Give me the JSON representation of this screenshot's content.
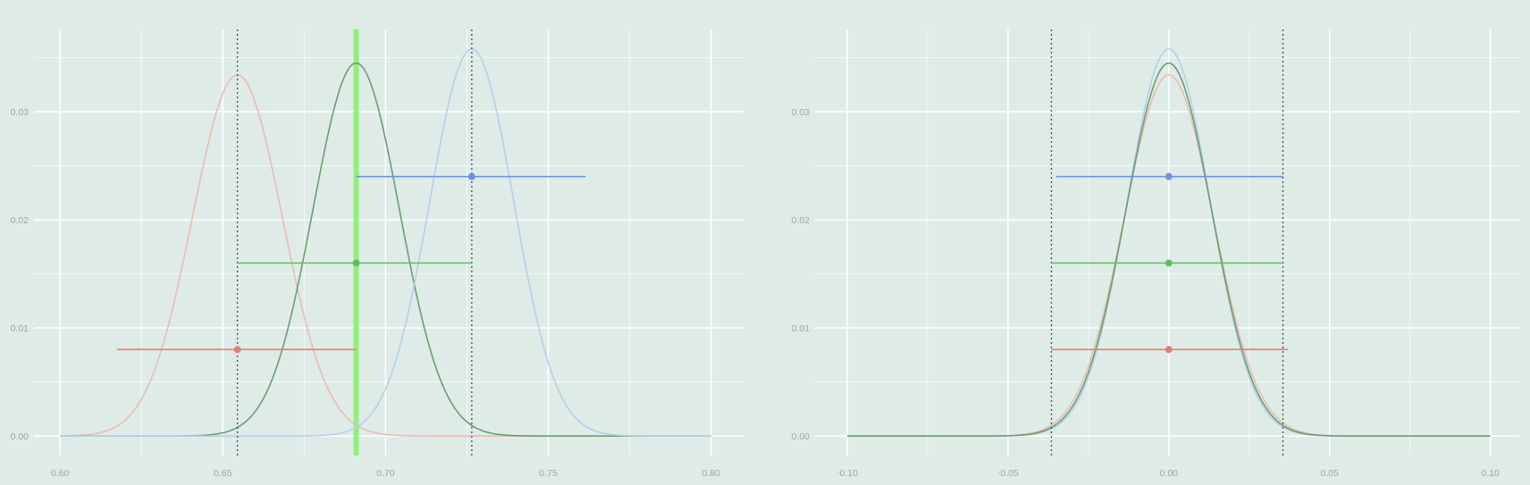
{
  "colors": {
    "background": "#dfebe7",
    "grid": "#ffffff",
    "tick_text": "#9aa8a4",
    "reference_line": "#4b5a55",
    "highlight_band": "#8ff07e",
    "red_curve": "#e9bcb2",
    "green_curve": "#6a9e72",
    "blue_curve": "#b6cfe8",
    "red_bar": "#e07f74",
    "green_bar": "#5cc05f",
    "blue_bar": "#6b93e3"
  },
  "chart_data": [
    {
      "type": "line",
      "title": "",
      "xlabel": "",
      "ylabel": "",
      "xlim": [
        0.592,
        0.81
      ],
      "ylim": [
        -0.0018,
        0.0376
      ],
      "x_ticks": [
        0.6,
        0.65,
        0.7,
        0.75,
        0.8
      ],
      "x_tick_labels": [
        "0.60",
        "0.65",
        "0.70",
        "0.75",
        "0.80"
      ],
      "y_ticks": [
        0.0,
        0.01,
        0.02,
        0.03
      ],
      "y_tick_labels": [
        "0.00",
        "0.01",
        "0.02",
        "0.03"
      ],
      "grid": true,
      "highlight_x": 0.691,
      "reference_lines_x": [
        0.6545,
        0.7265
      ],
      "series": [
        {
          "color_key": "red_curve",
          "mean": 0.6545,
          "peak": 0.0334,
          "sd": 0.0138,
          "x_range": [
            0.6,
            0.8
          ]
        },
        {
          "color_key": "green_curve",
          "mean": 0.691,
          "peak": 0.0345,
          "sd": 0.0133,
          "x_range": [
            0.6,
            0.8
          ]
        },
        {
          "color_key": "blue_curve",
          "mean": 0.7265,
          "peak": 0.0358,
          "sd": 0.0129,
          "x_range": [
            0.6,
            0.8
          ]
        }
      ],
      "intervals": [
        {
          "color_key": "red_bar",
          "y": 0.008,
          "point": 0.6545,
          "low": 0.6175,
          "high": 0.691
        },
        {
          "color_key": "green_bar",
          "y": 0.016,
          "point": 0.691,
          "low": 0.6545,
          "high": 0.7265
        },
        {
          "color_key": "blue_bar",
          "y": 0.024,
          "point": 0.7265,
          "low": 0.691,
          "high": 0.7615
        }
      ]
    },
    {
      "type": "line",
      "title": "",
      "xlabel": "",
      "ylabel": "",
      "xlim": [
        -0.11,
        0.109
      ],
      "ylim": [
        -0.0018,
        0.0376
      ],
      "x_ticks": [
        -0.1,
        -0.05,
        0.0,
        0.05,
        0.1
      ],
      "x_tick_labels": [
        "-0.10",
        "-0.05",
        "0.00",
        "0.05",
        "0.10"
      ],
      "y_ticks": [
        0.0,
        0.01,
        0.02,
        0.03
      ],
      "y_tick_labels": [
        "0.00",
        "0.01",
        "0.02",
        "0.03"
      ],
      "grid": true,
      "reference_lines_x": [
        -0.0365,
        0.0355
      ],
      "series": [
        {
          "color_key": "red_curve",
          "mean": 0.0,
          "peak": 0.0334,
          "sd": 0.0138,
          "x_range": [
            -0.1,
            0.1
          ]
        },
        {
          "color_key": "blue_curve",
          "mean": 0.0,
          "peak": 0.0358,
          "sd": 0.0129,
          "x_range": [
            -0.1,
            0.1
          ]
        },
        {
          "color_key": "green_curve",
          "mean": 0.0,
          "peak": 0.0345,
          "sd": 0.0133,
          "x_range": [
            -0.1,
            0.1
          ]
        }
      ],
      "intervals": [
        {
          "color_key": "red_bar",
          "y": 0.008,
          "point": 0.0,
          "low": -0.0365,
          "high": 0.037
        },
        {
          "color_key": "green_bar",
          "y": 0.016,
          "point": 0.0,
          "low": -0.0365,
          "high": 0.0355
        },
        {
          "color_key": "blue_bar",
          "y": 0.024,
          "point": 0.0,
          "low": -0.035,
          "high": 0.0355
        }
      ]
    }
  ]
}
